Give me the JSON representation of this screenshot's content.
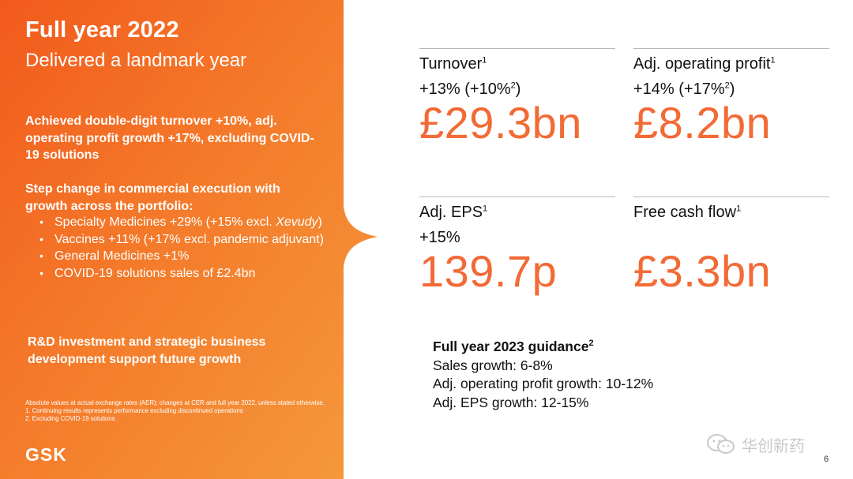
{
  "slide": {
    "title": "Full year 2022",
    "subtitle": "Delivered a landmark year",
    "paragraph1": "Achieved double-digit turnover +10%, adj. operating profit growth +17%, excluding COVID-19 solutions",
    "paragraph2": "Step change in commercial execution with growth across the portfolio:",
    "bullets": {
      "b1": "Specialty Medicines +29% (+15% excl. ",
      "b1_italic": "Xevudy",
      "b1_end": ")",
      "b2": "Vaccines +11% (+17% excl. pandemic adjuvant)",
      "b3": "General Medicines +1%",
      "b4": "COVID-19 solutions sales of £2.4bn"
    },
    "paragraph3": "R&D investment and strategic business development support future growth",
    "footnote_main": "Absolute values at actual exchange rates (AER); changes at CER and full year 2022, unless stated otherwise.",
    "footnote_1": "1. Continuing results represents performance excluding discontinued operations",
    "footnote_2": "2. Excluding COVID-19 solutions",
    "logo": "GSK",
    "page_number": "6",
    "watermark": "华创新药"
  },
  "metrics": {
    "turnover": {
      "label": "Turnover",
      "sup": "1",
      "change_a": "+13% (+10%",
      "change_sup": "2",
      "change_b": ")",
      "value": "£29.3bn"
    },
    "adj_op_profit": {
      "label": "Adj. operating profit",
      "sup": "1",
      "change_a": "+14% (+17%",
      "change_sup": "2",
      "change_b": ")",
      "value": "£8.2bn"
    },
    "adj_eps": {
      "label": "Adj. EPS",
      "sup": "1",
      "change": "+15%",
      "value": "139.7p"
    },
    "fcf": {
      "label": "Free cash flow",
      "sup": "1",
      "value": "£3.3bn"
    }
  },
  "guidance": {
    "title": "Full year 2023 guidance",
    "sup": "2",
    "line1": "Sales growth: 6-8%",
    "line2": "Adj. operating profit growth: 10-12%",
    "line3": "Adj. EPS growth: 12-15%"
  },
  "colors": {
    "accent": "#f26a35",
    "panel_dark": "#f0641e",
    "panel_light": "#f7a24a"
  }
}
